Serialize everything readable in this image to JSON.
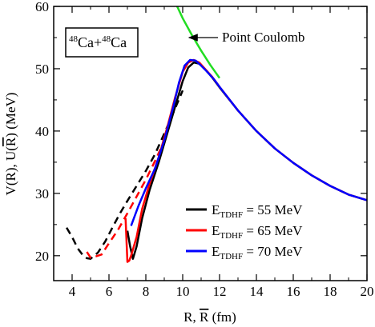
{
  "chart_data": {
    "type": "line",
    "xlabel_parts": [
      "R, ",
      "R",
      " (fm)"
    ],
    "ylabel_parts": [
      "V(R), U(",
      "R",
      ") (MeV)"
    ],
    "xlim": [
      3,
      20
    ],
    "ylim": [
      16,
      60
    ],
    "x_ticks": [
      4,
      6,
      8,
      10,
      12,
      14,
      16,
      18,
      20
    ],
    "y_ticks": [
      20,
      30,
      40,
      50,
      60
    ],
    "grid": false,
    "legend_position": "bottom-right",
    "system_label": {
      "mass1": "48",
      "el1": "Ca",
      "plus": "+",
      "mass2": "48",
      "el2": "Ca"
    },
    "annotation": "Point Coulomb",
    "colors": {
      "coulomb": "#22dd22",
      "e55": "#000000",
      "e65": "#ff0000",
      "e70": "#0000ff"
    },
    "coulomb": {
      "name": "Point Coulomb",
      "x": [
        9.7,
        10.0,
        10.5,
        11.0,
        11.5,
        12.0
      ],
      "y": [
        60.0,
        58.1,
        55.4,
        52.9,
        50.6,
        48.5
      ]
    },
    "series": [
      {
        "legend_main": "E",
        "legend_sub": "TDHF",
        "legend_rest": " = 55 MeV",
        "color": "#000000",
        "solid": {
          "x": [
            7.0,
            7.15,
            7.3,
            7.5,
            7.8,
            8.2,
            8.7,
            9.2,
            9.6,
            10.0,
            10.3,
            10.6,
            10.9,
            11.2,
            11.6,
            12.0,
            13.0,
            14.0,
            15.0,
            16.0,
            17.0,
            18.0,
            19.0,
            20.0
          ],
          "y": [
            24.0,
            21.5,
            19.5,
            21.5,
            26.0,
            30.5,
            35.0,
            40.0,
            44.0,
            48.0,
            50.2,
            51.0,
            50.8,
            50.0,
            48.6,
            47.0,
            43.3,
            40.0,
            37.2,
            34.9,
            32.9,
            31.2,
            29.8,
            28.9
          ]
        },
        "dashed": {
          "x": [
            3.7,
            4.0,
            4.3,
            4.6,
            4.8,
            5.0,
            5.4,
            5.8,
            6.2,
            6.6,
            7.0,
            7.5,
            8.0,
            8.5,
            9.0,
            9.5,
            10.0
          ],
          "y": [
            24.5,
            23.0,
            21.2,
            20.0,
            19.6,
            19.5,
            20.5,
            22.3,
            24.6,
            26.8,
            28.8,
            31.2,
            33.6,
            36.3,
            39.6,
            43.0,
            46.5
          ]
        }
      },
      {
        "legend_main": "E",
        "legend_sub": "TDHF",
        "legend_rest": " = 65 MeV",
        "color": "#ff0000",
        "solid": {
          "x": [
            6.9,
            7.0,
            7.1,
            7.2,
            7.5,
            7.8,
            8.2,
            8.7,
            9.2,
            9.6,
            10.0,
            10.3,
            10.6,
            10.9,
            11.2,
            11.6,
            12.0,
            13.0,
            14.0,
            15.0,
            16.0,
            17.0,
            18.0,
            19.0,
            20.0
          ],
          "y": [
            26.0,
            19.0,
            19.2,
            20.0,
            23.0,
            27.5,
            31.5,
            35.8,
            41.0,
            45.5,
            49.5,
            51.0,
            51.4,
            51.0,
            50.0,
            48.7,
            47.1,
            43.3,
            40.0,
            37.2,
            34.9,
            32.9,
            31.2,
            29.8,
            28.9
          ]
        },
        "dashed": {
          "x": [
            4.8,
            5.0,
            5.3,
            5.6,
            6.0,
            6.5,
            7.0,
            7.5,
            8.0,
            8.5,
            9.0
          ],
          "y": [
            20.6,
            19.7,
            19.9,
            20.2,
            22.0,
            24.2,
            26.8,
            29.5,
            32.2,
            35.2,
            38.4
          ]
        }
      },
      {
        "legend_main": "E",
        "legend_sub": "TDHF",
        "legend_rest": " = 70 MeV",
        "color": "#0000ff",
        "solid": {
          "x": [
            7.2,
            7.6,
            8.0,
            8.5,
            9.0,
            9.5,
            9.8,
            10.1,
            10.4,
            10.7,
            11.0,
            11.3,
            11.7,
            12.0,
            13.0,
            14.0,
            15.0,
            16.0,
            17.0,
            18.0,
            19.0,
            20.0
          ],
          "y": [
            24.8,
            28.0,
            30.8,
            34.0,
            38.5,
            44.0,
            47.8,
            50.5,
            51.4,
            51.3,
            50.5,
            49.6,
            48.3,
            47.1,
            43.3,
            40.0,
            37.2,
            34.9,
            32.9,
            31.2,
            29.8,
            28.9
          ]
        },
        "dashed": {
          "x": [],
          "y": []
        }
      }
    ]
  }
}
